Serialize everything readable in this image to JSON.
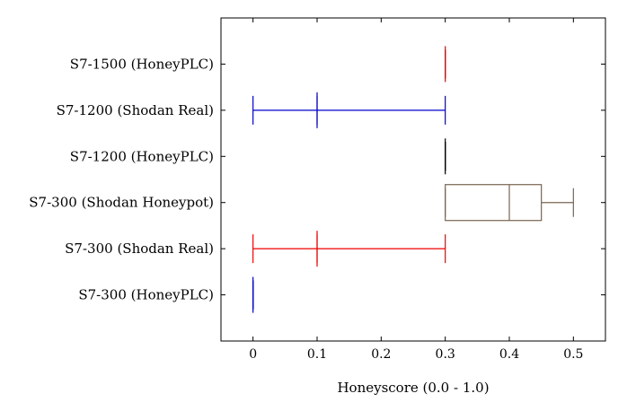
{
  "chart_data": {
    "type": "boxplot",
    "orientation": "horizontal",
    "title": "",
    "xlabel": "Honeyscore (0.0 - 1.0)",
    "ylabel": "",
    "xlim": [
      -0.05,
      0.55
    ],
    "ylim": [
      0,
      7
    ],
    "xticks": [
      0,
      0.1,
      0.2,
      0.3,
      0.4,
      0.5
    ],
    "xtick_labels": [
      "0",
      "0.1",
      "0.2",
      "0.3",
      "0.4",
      "0.5"
    ],
    "grid": false,
    "series": [
      {
        "name": "S7-300 (HoneyPLC)",
        "position": 1,
        "color": "#0000cc",
        "lower_whisker": 0,
        "lower_quartile": 0,
        "median": 0,
        "upper_quartile": 0,
        "upper_whisker": 0
      },
      {
        "name": "S7-300 (Shodan Real)",
        "position": 2,
        "color": "#ee0000",
        "lower_whisker": 0,
        "lower_quartile": 0.1,
        "median": 0.1,
        "upper_quartile": 0.1,
        "upper_whisker": 0.3
      },
      {
        "name": "S7-300 (Shodan Honeypot)",
        "position": 3,
        "color": "#7a6450",
        "lower_whisker": 0.3,
        "lower_quartile": 0.3,
        "median": 0.4,
        "upper_quartile": 0.45,
        "upper_whisker": 0.5
      },
      {
        "name": "S7-1200 (HoneyPLC)",
        "position": 4,
        "color": "#000000",
        "lower_whisker": 0.3,
        "lower_quartile": 0.3,
        "median": 0.3,
        "upper_quartile": 0.3,
        "upper_whisker": 0.3
      },
      {
        "name": "S7-1200 (Shodan Real)",
        "position": 5,
        "color": "#0000cc",
        "lower_whisker": 0,
        "lower_quartile": 0.1,
        "median": 0.1,
        "upper_quartile": 0.1,
        "upper_whisker": 0.3
      },
      {
        "name": "S7-1500 (HoneyPLC)",
        "position": 6,
        "color": "#ee0000",
        "lower_whisker": 0.3,
        "lower_quartile": 0.3,
        "median": 0.3,
        "upper_quartile": 0.3,
        "upper_whisker": 0.3
      }
    ]
  }
}
